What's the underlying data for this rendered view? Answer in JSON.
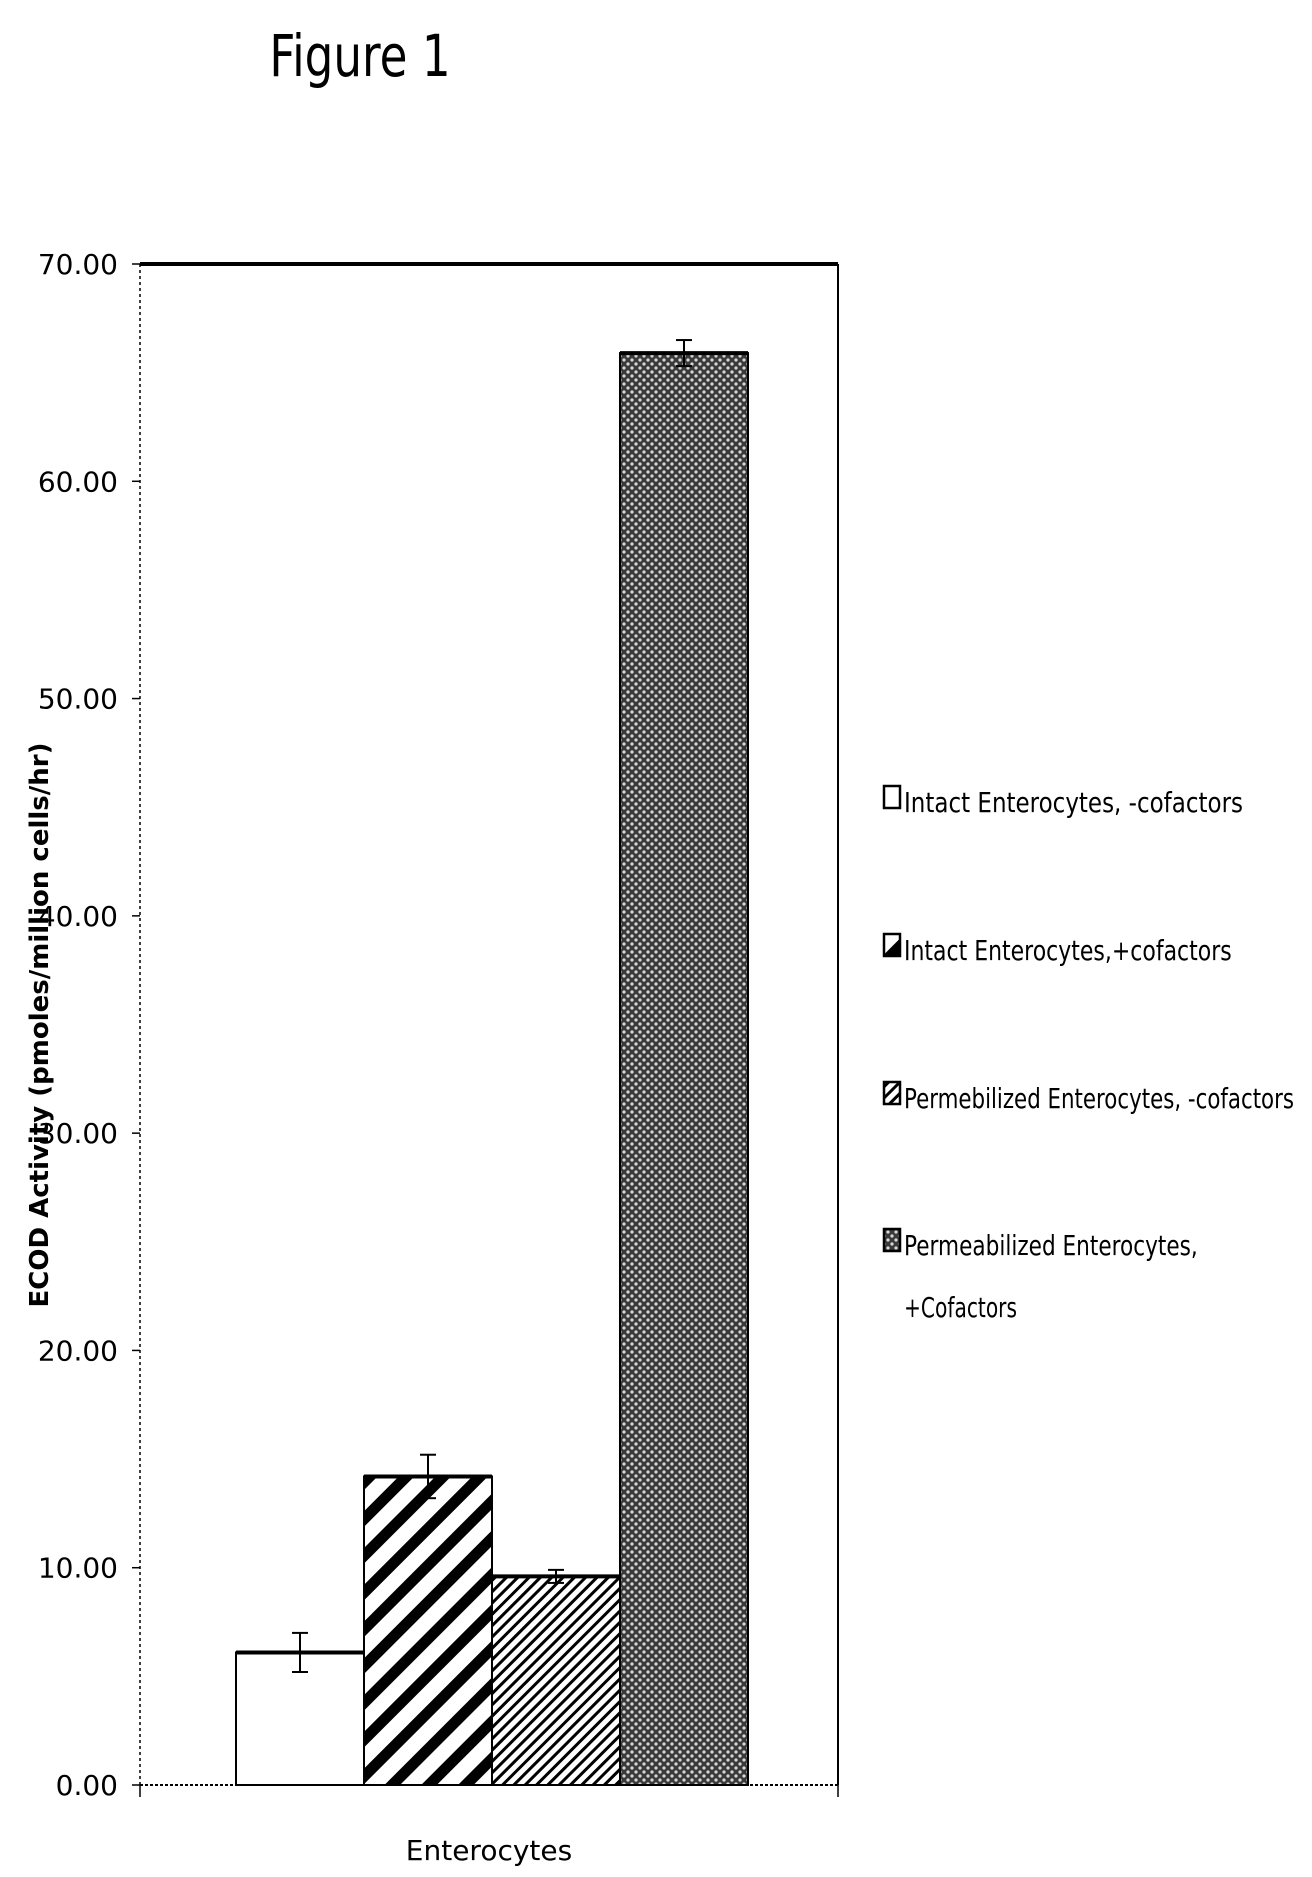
{
  "figure_title": "Figure 1",
  "chart_data": {
    "type": "bar",
    "categories": [
      "Enterocytes"
    ],
    "ylabel": "ECOD Activity (pmoles/million cells/hr)",
    "xlabel": "",
    "ylim": [
      0,
      70
    ],
    "yticks": [
      "0.00",
      "10.00",
      "20.00",
      "30.00",
      "40.00",
      "50.00",
      "60.00",
      "70.00"
    ],
    "legend_position": "right",
    "series": [
      {
        "name": "Intact Enterocytes, -cofactors",
        "values": [
          6.1
        ],
        "error": [
          0.9
        ],
        "pattern": "none"
      },
      {
        "name": "Intact Enterocytes,+cofactors",
        "values": [
          14.2
        ],
        "error": [
          1.0
        ],
        "pattern": "wide-diagonal"
      },
      {
        "name": "Permebilized Enterocytes, -cofactors",
        "values": [
          9.6
        ],
        "error": [
          0.3
        ],
        "pattern": "fine-diagonal"
      },
      {
        "name": "Permeabilized Enterocytes,",
        "name_line2": "+Cofactors",
        "values": [
          65.9
        ],
        "error": [
          0.6
        ],
        "pattern": "crosshatch"
      }
    ]
  }
}
